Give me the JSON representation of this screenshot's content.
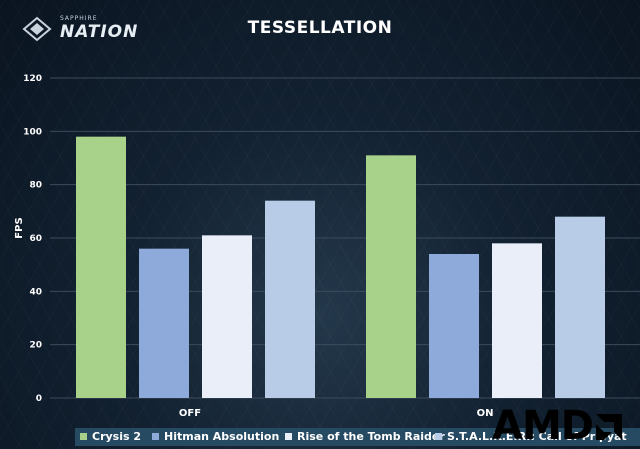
{
  "brand": {
    "small": "SAPPHIRE",
    "big": "NATION",
    "amd": "AMD"
  },
  "colors": {
    "crysis": "#a8d18a",
    "hitman": "#8eaadb",
    "tomb": "#e9eef8",
    "stalker": "#b8cce8",
    "axis_text": "#ffffff",
    "grid": "#3b4b5b",
    "legend_bg": "#274a63"
  },
  "chart_data": {
    "type": "bar",
    "title": "TESSELLATION",
    "xlabel": "",
    "ylabel": "FPS",
    "categories": [
      "OFF",
      "ON"
    ],
    "ylim": [
      0,
      120
    ],
    "yticks": [
      0,
      20,
      40,
      60,
      80,
      100,
      120
    ],
    "grid": true,
    "legend_position": "bottom",
    "series": [
      {
        "name": "Crysis 2",
        "values": [
          98,
          91
        ]
      },
      {
        "name": "Hitman Absolution",
        "values": [
          56,
          54
        ]
      },
      {
        "name": "Rise of the Tomb Raider",
        "values": [
          61,
          58
        ]
      },
      {
        "name": "S.T.A.L.K.E.R.: Call of Pripyat",
        "values": [
          74,
          68
        ]
      }
    ]
  }
}
